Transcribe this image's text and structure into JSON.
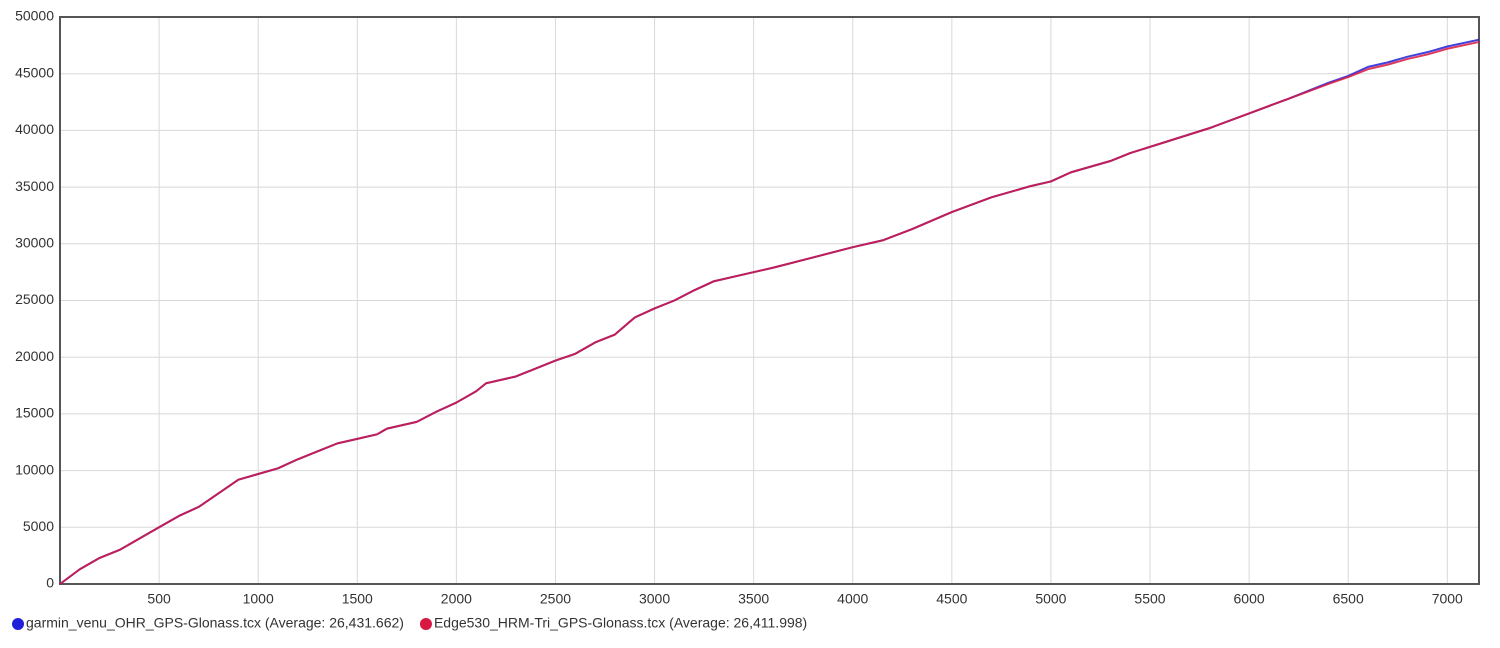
{
  "chart_data": {
    "type": "line",
    "x": [
      0,
      100,
      200,
      300,
      400,
      500,
      600,
      700,
      800,
      900,
      1000,
      1100,
      1200,
      1300,
      1400,
      1500,
      1600,
      1650,
      1800,
      1900,
      2000,
      2100,
      2150,
      2300,
      2400,
      2500,
      2600,
      2700,
      2800,
      2900,
      3000,
      3100,
      3200,
      3300,
      3400,
      3600,
      3800,
      4000,
      4150,
      4300,
      4500,
      4700,
      4900,
      5000,
      5100,
      5300,
      5400,
      5600,
      5800,
      6000,
      6200,
      6400,
      6500,
      6600,
      6700,
      6800,
      6900,
      7000,
      7160
    ],
    "series": [
      {
        "name": "garmin_venu_OHR_GPS-Glonass.tcx (Average: 26,431.662)",
        "color": "#2020d8",
        "values": [
          0,
          1300,
          2300,
          3000,
          4000,
          5000,
          6000,
          6800,
          8000,
          9200,
          9700,
          10200,
          11000,
          11700,
          12400,
          12800,
          13200,
          13700,
          14300,
          15200,
          16000,
          17000,
          17700,
          18300,
          19000,
          19700,
          20300,
          21300,
          22000,
          23500,
          24300,
          25000,
          25900,
          26700,
          27100,
          27900,
          28800,
          29700,
          30300,
          31300,
          32800,
          34100,
          35100,
          35500,
          36300,
          37300,
          38000,
          39100,
          40200,
          41500,
          42800,
          44200,
          44800,
          45600,
          46000,
          46500,
          46900,
          47400,
          48000
        ]
      },
      {
        "name": "Edge530_HRM-Tri_GPS-Glonass.tcx (Average: 26,411.998)",
        "color": "#d81840",
        "values": [
          0,
          1300,
          2300,
          3000,
          4000,
          5000,
          6000,
          6800,
          8000,
          9200,
          9700,
          10200,
          11000,
          11700,
          12400,
          12800,
          13200,
          13700,
          14300,
          15200,
          16000,
          17000,
          17700,
          18300,
          19000,
          19700,
          20300,
          21300,
          22000,
          23500,
          24300,
          25000,
          25900,
          26700,
          27100,
          27900,
          28800,
          29700,
          30300,
          31300,
          32800,
          34100,
          35100,
          35500,
          36300,
          37300,
          38000,
          39100,
          40200,
          41500,
          42800,
          44100,
          44700,
          45400,
          45800,
          46300,
          46700,
          47200,
          47800
        ]
      }
    ],
    "xlim": [
      0,
      7160
    ],
    "xticks": [
      500,
      1000,
      1500,
      2000,
      2500,
      3000,
      3500,
      4000,
      4500,
      5000,
      5500,
      6000,
      6500,
      7000
    ],
    "ylim": [
      0,
      50000
    ],
    "yticks": [
      0,
      5000,
      10000,
      15000,
      20000,
      25000,
      30000,
      35000,
      40000,
      45000,
      50000
    ],
    "grid": true
  }
}
